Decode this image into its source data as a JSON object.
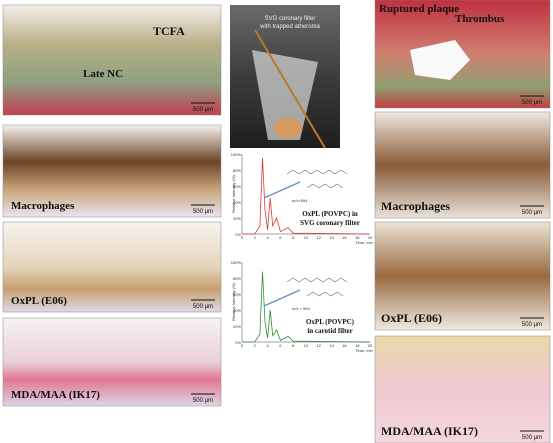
{
  "left_panels": [
    {
      "labels": [
        "TCFA",
        "Late NC"
      ],
      "scale": "500 µm"
    },
    {
      "labels": [
        "Macrophages"
      ],
      "scale": "500 µm"
    },
    {
      "labels": [
        "OxPL (E06)"
      ],
      "scale": "500 µm"
    },
    {
      "labels": [
        "MDA/MAA (IK17)"
      ],
      "scale": "500 µm"
    }
  ],
  "right_panels": [
    {
      "labels": [
        "Ruptured plaque",
        "Thrombus"
      ],
      "scale": "500 µm"
    },
    {
      "labels": [
        "Macrophages"
      ],
      "scale": "500 µm"
    },
    {
      "labels": [
        "OxPL (E06)"
      ],
      "scale": "500 µm"
    },
    {
      "labels": [
        "MDA/MAA (IK17)"
      ],
      "scale": "500 µm"
    }
  ],
  "photo": {
    "caption": [
      "SVG coronary filter",
      "with trapped atheroma"
    ]
  },
  "chromatograms": [
    {
      "caption": [
        "OxPL (POVPC) in",
        "SVG coronary filter"
      ],
      "mz": "m/z=594",
      "yticks": [
        "100%",
        "80%",
        "60%",
        "40%",
        "20%",
        "0%"
      ],
      "xticks": [
        "0",
        "2",
        "4",
        "6",
        "8",
        "10",
        "12",
        "14",
        "16",
        "18",
        "20"
      ],
      "xlabel": "Time, min",
      "ylabel": "Relative Intensity (%)"
    },
    {
      "caption": [
        "OxPL (POVPC)",
        "in carotid filter"
      ],
      "mz": "m/z = 594",
      "yticks": [
        "100%",
        "80%",
        "60%",
        "40%",
        "20%",
        "0%"
      ],
      "xticks": [
        "0",
        "2",
        "4",
        "6",
        "8",
        "10",
        "12",
        "14",
        "16",
        "18",
        "20"
      ],
      "xlabel": "Time, min",
      "ylabel": "Relative Intensity (%)"
    }
  ]
}
